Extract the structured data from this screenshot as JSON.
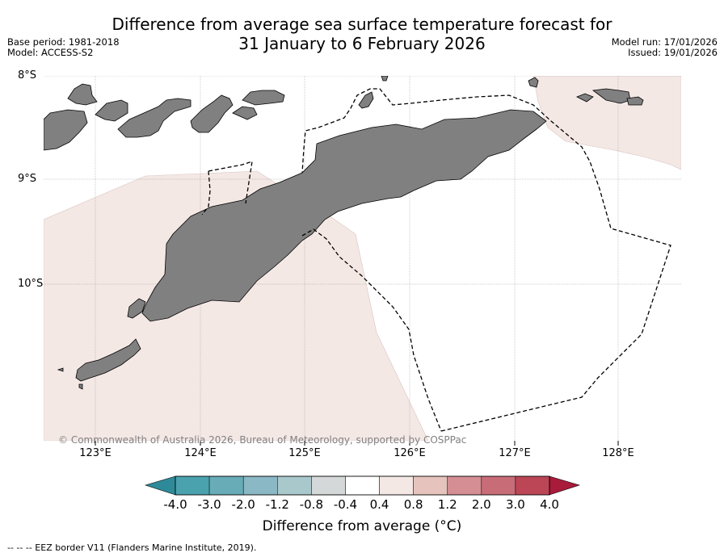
{
  "title": {
    "line1": "Difference from average sea surface temperature forecast for",
    "line2": "31 January to 6 February 2026"
  },
  "meta_left": {
    "base_period": "Base period: 1981-2018",
    "model": "Model: ACCESS-S2"
  },
  "meta_right": {
    "model_run": "Model run: 17/01/2026",
    "issued": "Issued: 19/01/2026"
  },
  "map": {
    "lat_labels": [
      "8°S",
      "9°S",
      "10°S"
    ],
    "lon_labels": [
      "123°E",
      "124°E",
      "125°E",
      "126°E",
      "127°E",
      "128°E"
    ],
    "copyright": "© Commonwealth of Australia 2026, Bureau of Meteorology, supported by COSPPac",
    "colors": {
      "land": "#808080",
      "anomaly_0_4_to_0_8": "#f4e8e5",
      "eez_border": "#000000"
    }
  },
  "colorbar": {
    "ticks": [
      "-4.0",
      "-3.0",
      "-2.0",
      "-1.2",
      "-0.8",
      "-0.4",
      "0.4",
      "0.8",
      "1.2",
      "2.0",
      "3.0",
      "4.0"
    ],
    "colors": [
      "#2e8a98",
      "#4aa2ae",
      "#68acb8",
      "#8ab8c4",
      "#a8c8cc",
      "#d4d8d8",
      "#ffffff",
      "#f4e8e5",
      "#e6c4bd",
      "#d48e94",
      "#c86c78",
      "#bc4656",
      "#a81b3a"
    ],
    "label": "Difference from average (°C)"
  },
  "footnote": "--  --  -- EEZ border V11 (Flanders Marine Institute, 2019)."
}
